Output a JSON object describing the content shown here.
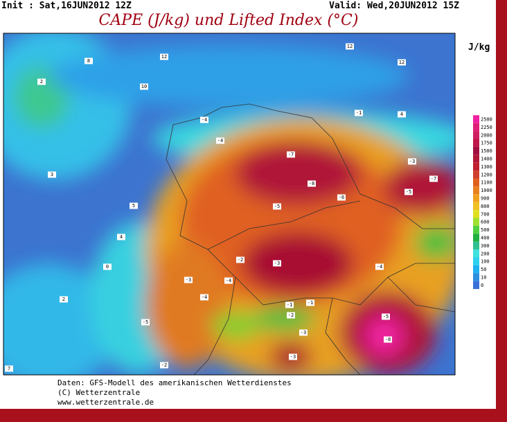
{
  "header": {
    "init": "Init : Sat,16JUN2012 12Z",
    "valid": "Valid: Wed,20JUN2012 15Z",
    "title": "CAPE (J/kg) und Lifted Index (°C)"
  },
  "legend": {
    "unit": "J/kg",
    "levels": [
      2500,
      2250,
      2000,
      1750,
      1500,
      1400,
      1300,
      1200,
      1100,
      1000,
      900,
      800,
      700,
      600,
      500,
      400,
      300,
      200,
      100,
      50,
      10,
      0
    ]
  },
  "map": {
    "lifted_index_labels": [
      -7,
      -8,
      -6,
      -5,
      -3,
      -5,
      -8,
      -7,
      -5,
      -3,
      -4,
      -2,
      -3,
      -5,
      -2,
      -4,
      -3,
      -3,
      -4,
      2,
      10,
      12,
      8,
      12,
      12,
      4,
      3,
      5,
      4,
      0,
      2,
      7,
      -1,
      -2,
      -1,
      -4,
      -4,
      -1
    ]
  },
  "footer": {
    "lines": [
      "Daten: GFS-Modell des amerikanischen Wetterdienstes",
      "(C) Wetterzentrale",
      "www.wetterzentrale.de"
    ]
  }
}
